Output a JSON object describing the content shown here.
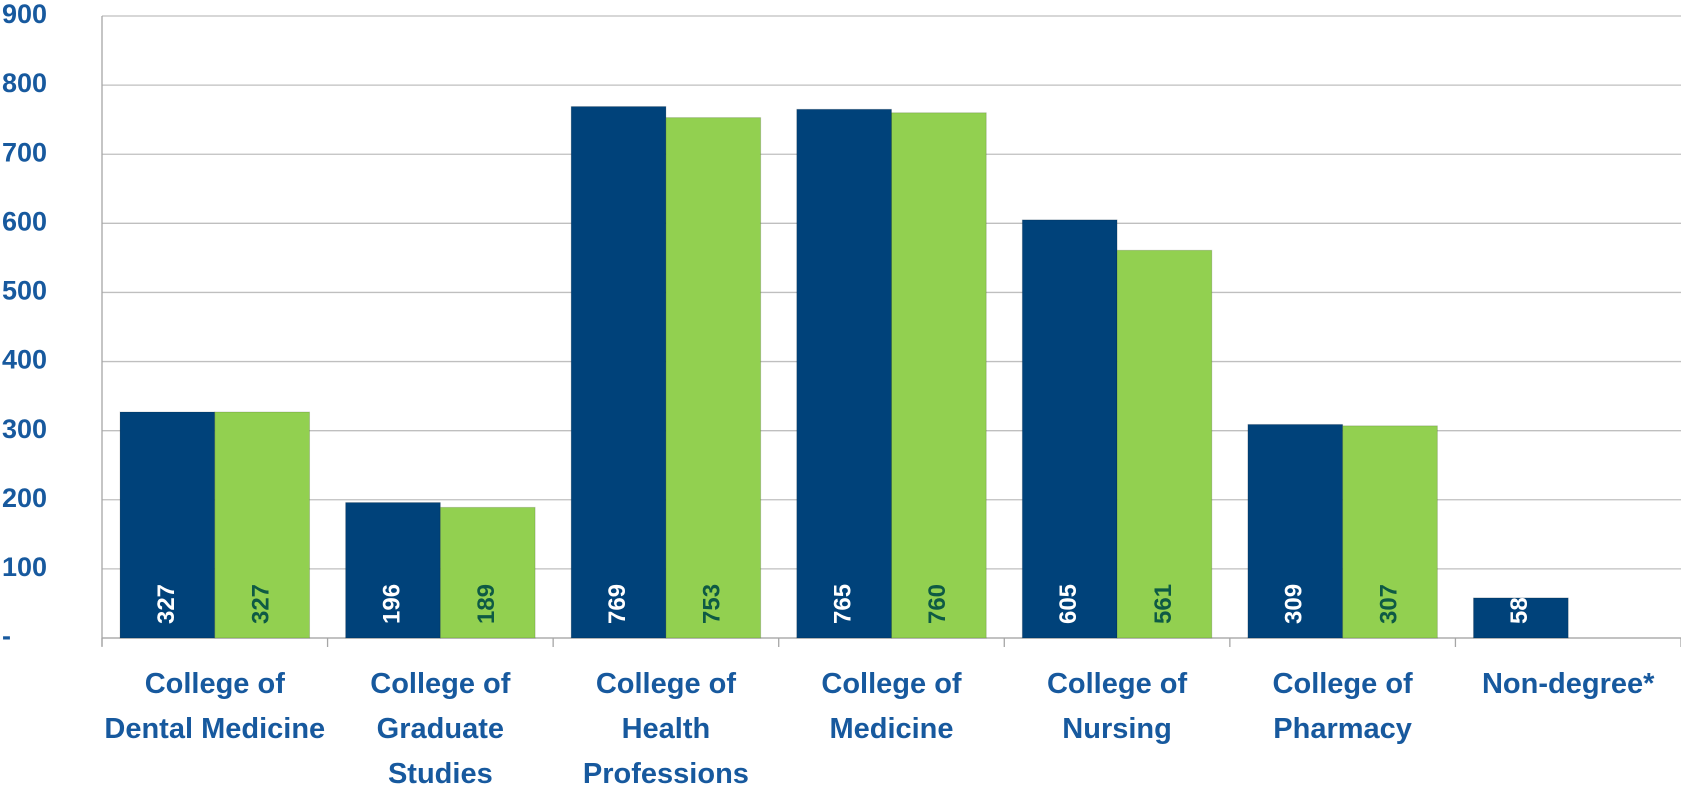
{
  "chart_data": {
    "type": "bar",
    "categories": [
      "College of Dental Medicine",
      "College of Graduate Studies",
      "College of Health Professions",
      "College of Medicine",
      "College of Nursing",
      "College of Pharmacy",
      "Non-degree*"
    ],
    "series": [
      {
        "color": "#00427a",
        "values": [
          327,
          196,
          769,
          765,
          605,
          309,
          58
        ]
      },
      {
        "color": "#92d050",
        "values": [
          327,
          189,
          753,
          760,
          561,
          307,
          null
        ]
      }
    ],
    "ylim": [
      0,
      900
    ],
    "yticks": [
      {
        "value": 0,
        "label": "-"
      },
      100,
      200,
      300,
      400,
      500,
      600,
      700,
      800,
      900
    ],
    "grid": true
  }
}
